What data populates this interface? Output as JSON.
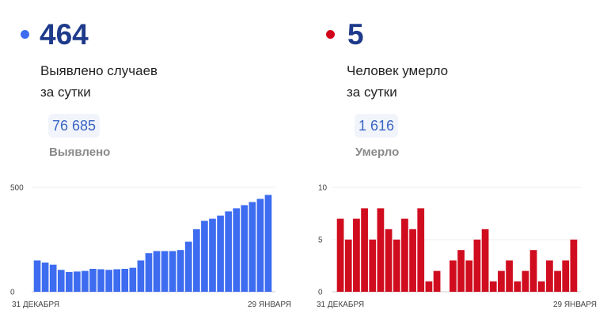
{
  "cases": {
    "count": "464",
    "caption_line1": "Выявлено случаев",
    "caption_line2": "за сутки",
    "total": "76 685",
    "total_label": "Выявлено",
    "color": "#3d6cf0",
    "dot_color": "#3d6cf0"
  },
  "deaths": {
    "count": "5",
    "caption_line1": "Человек умерло",
    "caption_line2": "за сутки",
    "total": "1 616",
    "total_label": "Умерло",
    "color": "#d00d1f",
    "dot_color": "#d0021b"
  },
  "chart_data": [
    {
      "type": "bar",
      "y_ticks": [
        "500",
        "0"
      ],
      "ylim": [
        0,
        500
      ],
      "x_tick_labels": [
        "31 ДЕКАБРЯ",
        "29 ЯНВАРЯ"
      ],
      "values": [
        150,
        140,
        130,
        105,
        95,
        97,
        100,
        110,
        108,
        105,
        108,
        110,
        115,
        150,
        185,
        195,
        195,
        195,
        200,
        240,
        300,
        340,
        350,
        365,
        385,
        400,
        415,
        430,
        445,
        464
      ],
      "grid": true
    },
    {
      "type": "bar",
      "y_ticks": [
        "10",
        "5",
        "0"
      ],
      "ylim": [
        0,
        10
      ],
      "x_tick_labels": [
        "31 ДЕКАБРЯ",
        "29 ЯНВАРЯ"
      ],
      "values": [
        7,
        5,
        7,
        8,
        5,
        8,
        6,
        5,
        7,
        6,
        8,
        1,
        2,
        0,
        3,
        4,
        3,
        5,
        6,
        1,
        2,
        3,
        1,
        2,
        4,
        1,
        3,
        2,
        3,
        5
      ],
      "grid": true
    }
  ]
}
